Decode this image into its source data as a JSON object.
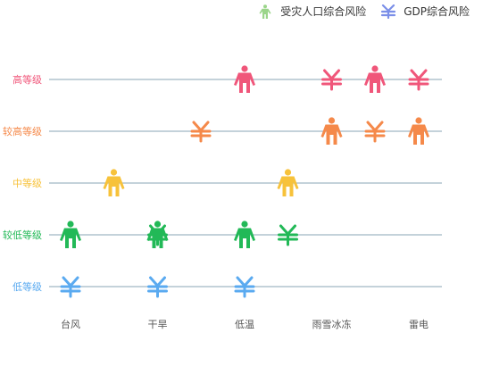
{
  "chart_data": {
    "type": "scatter",
    "title": "",
    "categories": [
      "台风",
      "干旱",
      "低温",
      "雨雪冰冻",
      "雷电"
    ],
    "levels": [
      "高等级",
      "较高等级",
      "中等级",
      "较低等级",
      "低等级"
    ],
    "level_colors": [
      "#f0567a",
      "#f5894a",
      "#f7c23a",
      "#22b957",
      "#5aaaf0"
    ],
    "grid": true,
    "series": [
      {
        "name": "受灾人口综合风险",
        "icon": "person-icon",
        "legend_color": "#9bd58a",
        "points": [
          {
            "x": "台风",
            "level": "较低等级"
          },
          {
            "x": "干旱",
            "level": "中等级"
          },
          {
            "x": "干旱",
            "level": "较低等级"
          },
          {
            "x": "低温",
            "level": "高等级"
          },
          {
            "x": "低温",
            "level": "较低等级"
          },
          {
            "x": "雨雪冰冻",
            "level": "中等级"
          },
          {
            "x": "雨雪冰冻",
            "level": "较高等级"
          },
          {
            "x": "雷电",
            "level": "高等级"
          },
          {
            "x": "雷电",
            "level": "较高等级"
          }
        ]
      },
      {
        "name": "GDP综合风险",
        "icon": "yen-icon",
        "legend_color": "#7b8fe8",
        "points": [
          {
            "x": "台风",
            "level": "低等级"
          },
          {
            "x": "干旱",
            "level": "较低等级"
          },
          {
            "x": "干旱",
            "level": "低等级"
          },
          {
            "x": "低温",
            "level": "较高等级"
          },
          {
            "x": "低温",
            "level": "低等级"
          },
          {
            "x": "雨雪冰冻",
            "level": "较低等级"
          },
          {
            "x": "雨雪冰冻",
            "level": "高等级"
          },
          {
            "x": "雷电",
            "level": "较高等级"
          },
          {
            "x": "雷电",
            "level": "高等级"
          }
        ]
      }
    ]
  }
}
